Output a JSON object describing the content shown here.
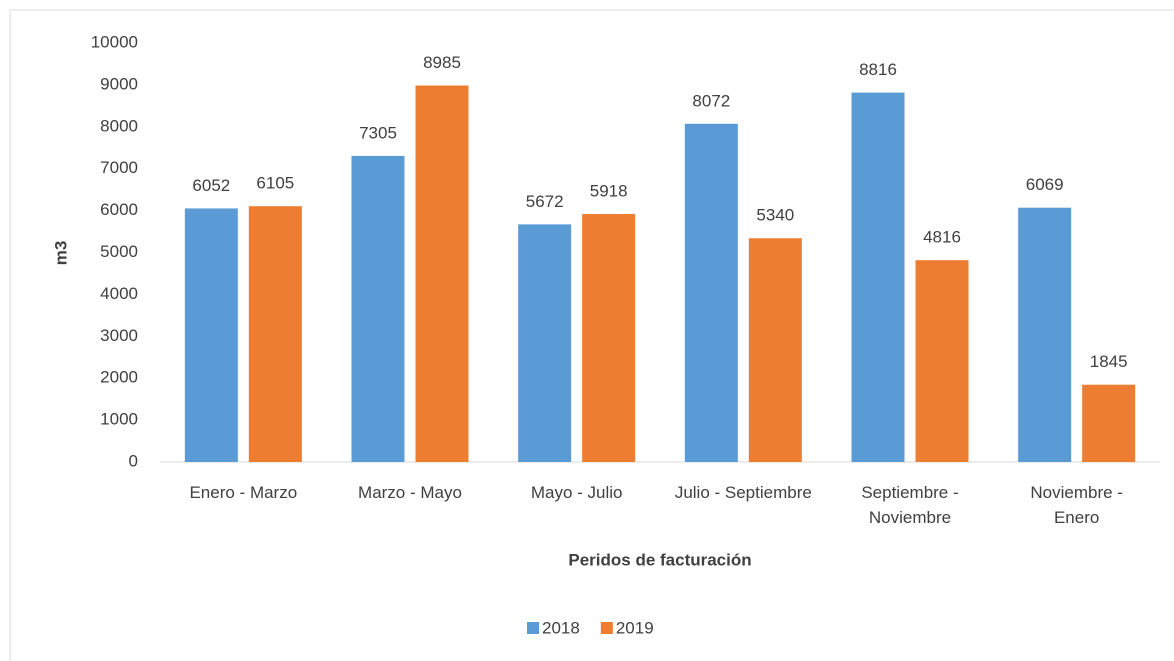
{
  "chart_data": {
    "type": "bar",
    "categories": [
      "Enero - Marzo",
      "Marzo -  Mayo",
      "Mayo  - Julio",
      "Julio - Septiembre",
      "Septiembre - Noviembre",
      "Noviembre  - Enero"
    ],
    "series": [
      {
        "name": "2018",
        "color": "#5b9bd5",
        "values": [
          6052,
          7305,
          5672,
          8072,
          8816,
          6069
        ]
      },
      {
        "name": "2019",
        "color": "#ed7d31",
        "values": [
          6105,
          8985,
          5918,
          5340,
          4816,
          1845
        ]
      }
    ],
    "ylim": [
      0,
      10000
    ],
    "yticks": [
      0,
      1000,
      2000,
      3000,
      4000,
      5000,
      6000,
      7000,
      8000,
      9000,
      10000
    ],
    "ylabel": "m3",
    "xlabel": "Peridos de facturación",
    "grid": false,
    "legend": "bottom"
  }
}
